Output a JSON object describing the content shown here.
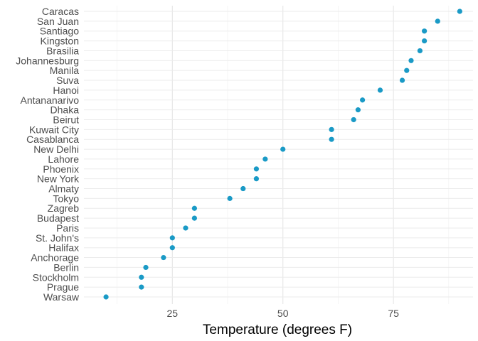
{
  "chart_data": {
    "type": "scatter",
    "xlabel": "Temperature (degrees F)",
    "ylabel": "",
    "xlim": [
      5,
      93
    ],
    "xticks": [
      25,
      50,
      75
    ],
    "grid": true,
    "point_color": "#1a9ac6",
    "categories": [
      "Warsaw",
      "Prague",
      "Stockholm",
      "Berlin",
      "Anchorage",
      "Halifax",
      "St. John's",
      "Paris",
      "Budapest",
      "Zagreb",
      "Tokyo",
      "Almaty",
      "New York",
      "Phoenix",
      "Lahore",
      "New Delhi",
      "Casablanca",
      "Kuwait City",
      "Beirut",
      "Dhaka",
      "Antananarivo",
      "Hanoi",
      "Suva",
      "Manila",
      "Johannesburg",
      "Brasilia",
      "Kingston",
      "Santiago",
      "San Juan",
      "Caracas"
    ],
    "values": [
      10,
      18,
      18,
      19,
      23,
      25,
      25,
      28,
      30,
      30,
      38,
      41,
      44,
      44,
      46,
      50,
      61,
      61,
      66,
      67,
      68,
      72,
      77,
      78,
      79,
      81,
      82,
      82,
      85,
      90
    ]
  }
}
